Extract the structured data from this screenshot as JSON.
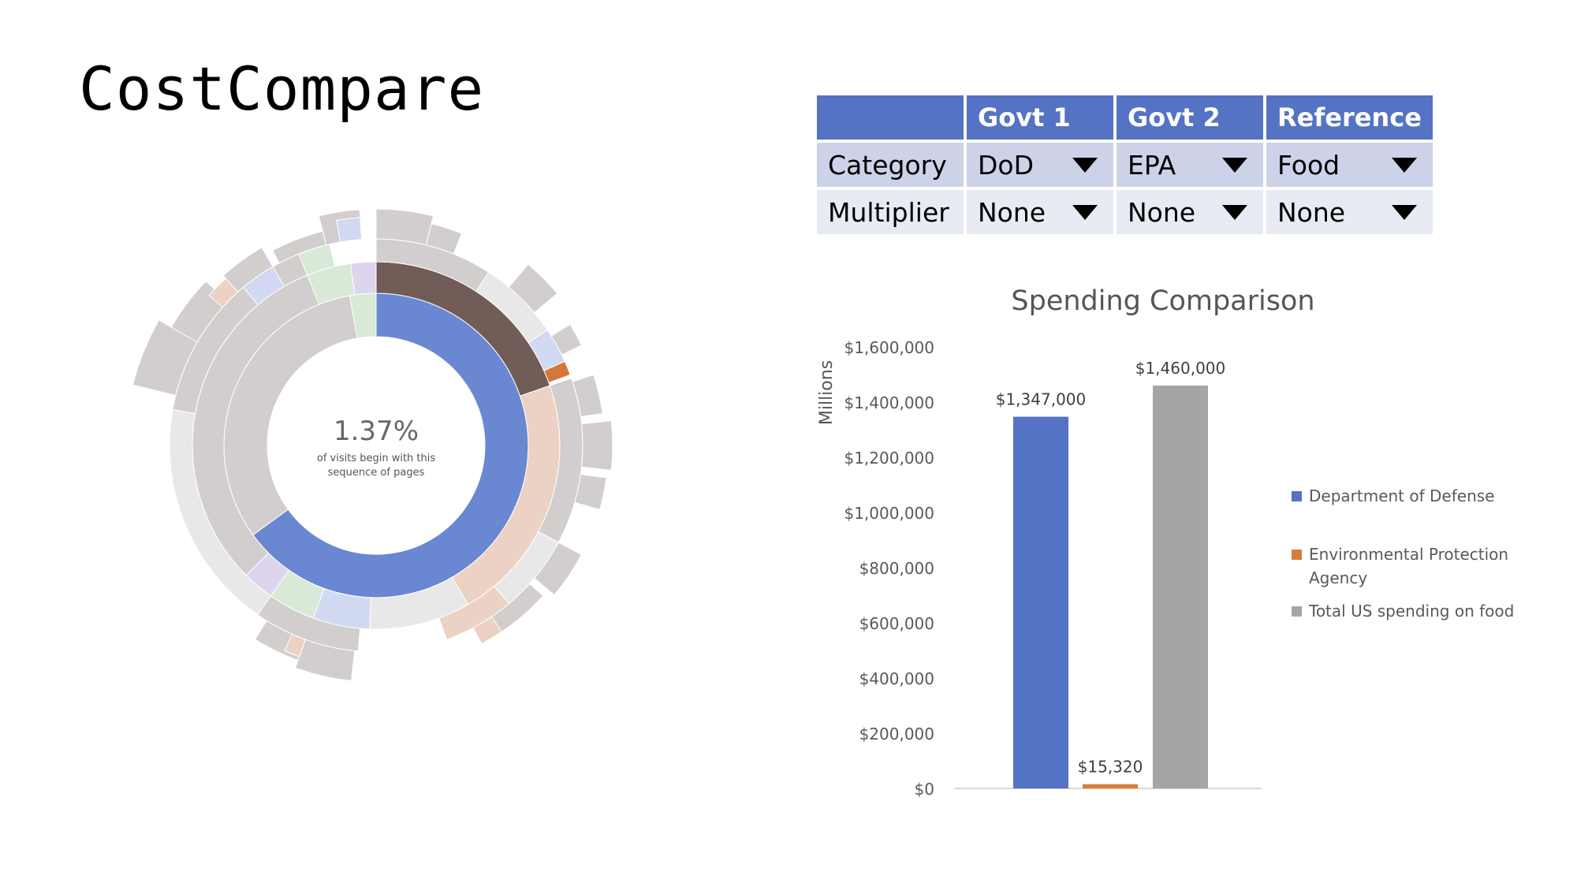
{
  "app": {
    "title": "CostCompare"
  },
  "sunburst": {
    "center_value": "1.37%",
    "center_caption_line1": "of visits begin with this",
    "center_caption_line2": "sequence of pages",
    "colors": {
      "selected_inner": "#6a88d1",
      "selected_outer": "#725c58",
      "peach": "#ecd2c4",
      "gray": "#d3cece",
      "light_gray": "#e8e8e8",
      "orange": "#d6763a",
      "blue_light": "#d2d9f2",
      "green_light": "#d8e9d8",
      "purple_light": "#ddd4ee"
    }
  },
  "selector_table": {
    "headers": [
      "",
      "Govt 1",
      "Govt 2",
      "Reference"
    ],
    "rows": [
      {
        "label": "Category",
        "values": [
          "DoD",
          "EPA",
          "Food"
        ]
      },
      {
        "label": "Multiplier",
        "values": [
          "None",
          "None",
          "None"
        ]
      }
    ],
    "header_color": "#5573c4"
  },
  "chart_data": {
    "type": "bar",
    "title": "Spending Comparison",
    "ylabel": "Millions",
    "xlabel": "",
    "ylim": [
      0,
      1600000
    ],
    "ytick_labels": [
      "$0",
      "$200,000",
      "$400,000",
      "$600,000",
      "$800,000",
      "$1,000,000",
      "$1,200,000",
      "$1,400,000",
      "$1,600,000"
    ],
    "grid": false,
    "legend_position": "right",
    "series": [
      {
        "name": "Department of Defense",
        "value": 1347000,
        "label": "$1,347,000",
        "color": "#5573c4"
      },
      {
        "name": "Environmental Protection Agency",
        "legend_line1": "Environmental Protection",
        "legend_line2": "Agency",
        "value": 15320,
        "label": "$15,320",
        "color": "#d97b3b"
      },
      {
        "name": "Total US spending on food",
        "value": 1460000,
        "label": "$1,460,000",
        "color": "#a5a5a5"
      }
    ]
  }
}
